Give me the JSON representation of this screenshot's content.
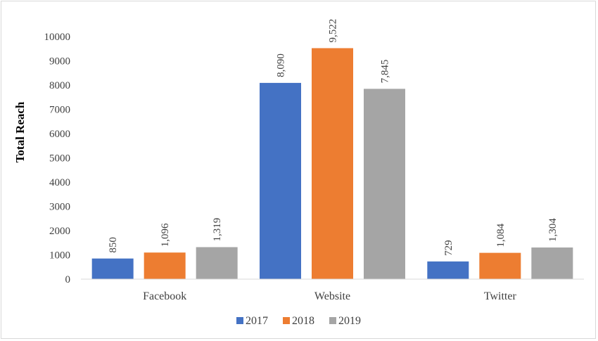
{
  "chart_data": {
    "type": "bar",
    "categories": [
      "Facebook",
      "Website",
      "Twitter"
    ],
    "series": [
      {
        "name": "2017",
        "color": "#4472C4",
        "values": [
          850,
          8090,
          729
        ],
        "labels": [
          "850",
          "8,090",
          "729"
        ]
      },
      {
        "name": "2018",
        "color": "#ED7D31",
        "values": [
          1096,
          9522,
          1084
        ],
        "labels": [
          "1,096",
          "9,522",
          "1,084"
        ]
      },
      {
        "name": "2019",
        "color": "#A5A5A5",
        "values": [
          1319,
          7845,
          1304
        ],
        "labels": [
          "1,319",
          "7,845",
          "1,304"
        ]
      }
    ],
    "ylabel": "Total Reach",
    "xlabel": "",
    "ylim": [
      0,
      10000
    ],
    "yticks": [
      0,
      1000,
      2000,
      3000,
      4000,
      5000,
      6000,
      7000,
      8000,
      9000,
      10000
    ],
    "grid": false,
    "legend": "bottom-center",
    "data_label_orientation": "vertical"
  }
}
